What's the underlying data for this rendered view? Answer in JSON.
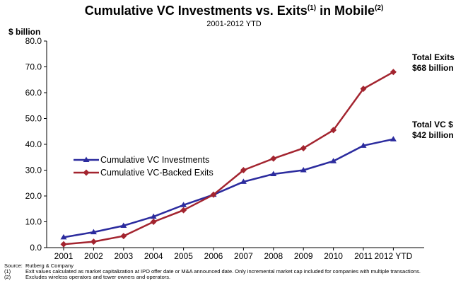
{
  "chart_data": {
    "type": "line",
    "title": "Cumulative VC Investments vs. Exits",
    "title_superscript_1": "(1)",
    "title_middle": " in Mobile",
    "title_superscript_2": "(2)",
    "subtitle": "2001-2012 YTD",
    "ylabel": "$ billion",
    "xlabel": "",
    "ylim": [
      0,
      80
    ],
    "yticks": [
      "0.0",
      "10.0",
      "20.0",
      "30.0",
      "40.0",
      "50.0",
      "60.0",
      "70.0",
      "80.0"
    ],
    "x": [
      "2001",
      "2002",
      "2003",
      "2004",
      "2005",
      "2006",
      "2007",
      "2008",
      "2009",
      "2010",
      "2011",
      "2012 YTD"
    ],
    "grid": false,
    "legend_position": "left-center",
    "series": [
      {
        "name": "Cumulative VC Investments",
        "color": "#2b2b9e",
        "marker": "triangle",
        "values": [
          4.0,
          6.0,
          8.5,
          12.0,
          16.5,
          20.5,
          25.5,
          28.5,
          30.0,
          33.5,
          39.5,
          42.0
        ]
      },
      {
        "name": "Cumulative VC-Backed Exits",
        "color": "#a3242f",
        "marker": "diamond",
        "values": [
          1.3,
          2.3,
          4.5,
          10.0,
          14.5,
          20.5,
          30.0,
          34.5,
          38.5,
          45.5,
          61.5,
          68.0
        ]
      }
    ],
    "annotations": [
      {
        "line1": "Total Exits",
        "line2": "$68 billion"
      },
      {
        "line1": "Total VC $",
        "line2": "$42 billion"
      }
    ],
    "footnotes": [
      {
        "marker": "Source:",
        "text": "Rutberg & Company"
      },
      {
        "marker": "(1)",
        "text": "Exit values calculated as market capitalization at IPO offer date or M&A announced date. Only incremental market cap included for companies with multiple transactions."
      },
      {
        "marker": "(2)",
        "text": "Excludes wireless operators and tower owners and operators."
      }
    ]
  }
}
